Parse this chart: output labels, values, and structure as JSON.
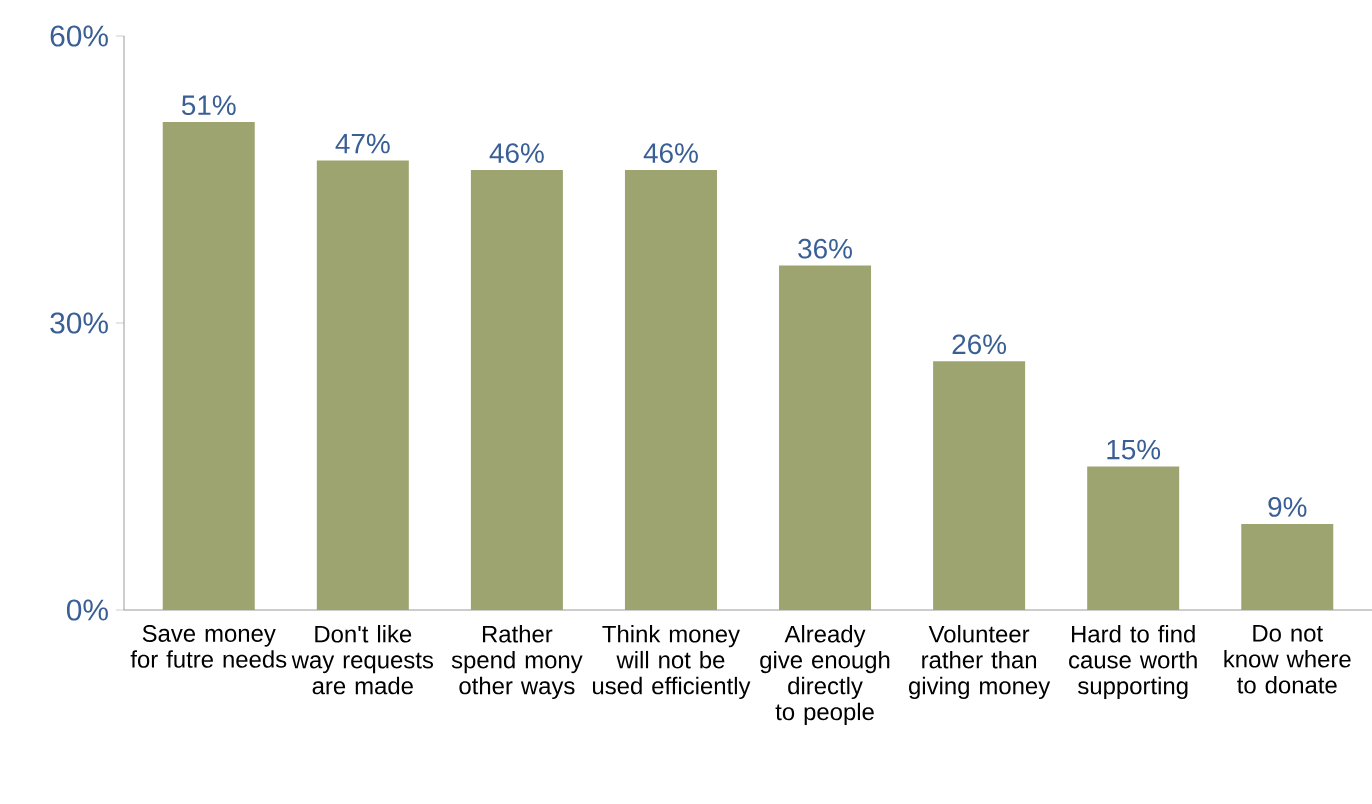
{
  "chart_data": {
    "type": "bar",
    "categories": [
      "Save money for futre needs",
      "Don't like way requests are made",
      "Rather spend mony other ways",
      "Think money will not be used efficiently",
      "Already give enough directly to people",
      "Volunteer rather than giving money",
      "Hard to find cause worth supporting",
      "Do not know where to donate"
    ],
    "values": [
      51,
      47,
      46,
      46,
      36,
      26,
      15,
      9
    ],
    "value_labels": [
      "51%",
      "47%",
      "46%",
      "46%",
      "36%",
      "26%",
      "15%",
      "9%"
    ],
    "color": "#9da46f",
    "ylim": [
      0,
      60
    ],
    "yticks": [
      {
        "value": 0,
        "label": "0%"
      },
      {
        "value": 30,
        "label": "30%"
      },
      {
        "value": 60,
        "label": "60%"
      }
    ],
    "grid": false
  }
}
